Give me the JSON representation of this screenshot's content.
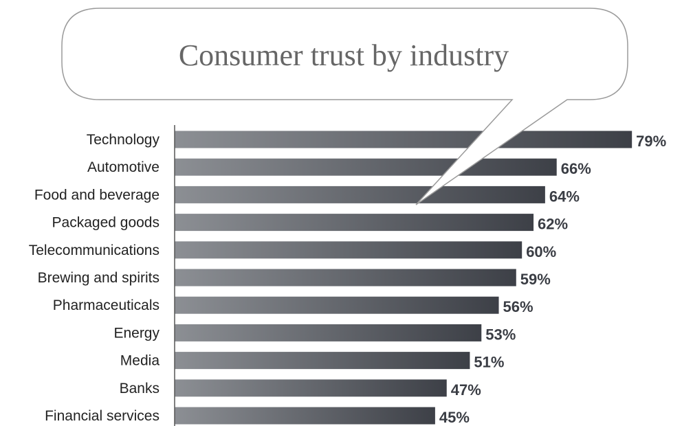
{
  "chart_data": {
    "type": "bar",
    "orientation": "horizontal",
    "title": "Consumer trust by industry",
    "categories": [
      "Technology",
      "Automotive",
      "Food and beverage",
      "Packaged goods",
      "Telecommunications",
      "Brewing and spirits",
      "Pharmaceuticals",
      "Energy",
      "Media",
      "Banks",
      "Financial services"
    ],
    "values": [
      79,
      66,
      64,
      62,
      60,
      59,
      56,
      53,
      51,
      47,
      45
    ],
    "value_labels": [
      "79%",
      "66%",
      "64%",
      "62%",
      "60%",
      "59%",
      "56%",
      "53%",
      "51%",
      "47%",
      "45%"
    ],
    "unit": "%",
    "xlim": [
      0,
      80
    ],
    "grid": false,
    "legend": "none",
    "colors": {
      "bar_light": "#8c8f94",
      "bar_dark": "#3d4047",
      "bubble_stroke": "#9a9a9a",
      "axis": "#555555"
    }
  }
}
